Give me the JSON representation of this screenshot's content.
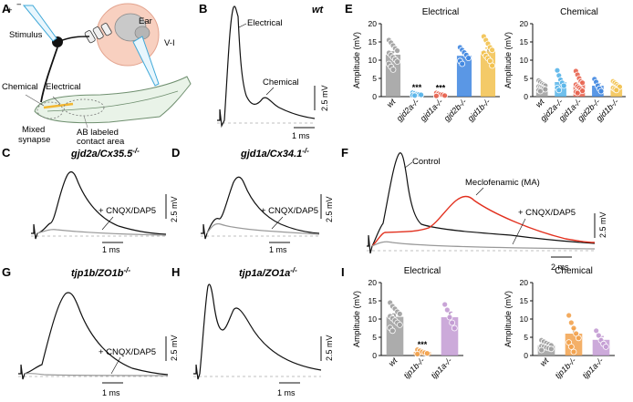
{
  "panel_labels": {
    "A": "A",
    "B": "B",
    "C": "C",
    "D": "D",
    "E": "E",
    "F": "F",
    "G": "G",
    "H": "H",
    "I": "I"
  },
  "panel_a": {
    "ear": "Ear",
    "stimulus": "Stimulus",
    "plus": "+",
    "minus": "−",
    "vi": "V-I",
    "chemical": "Chemical",
    "electrical": "Electrical",
    "mixed": "Mixed",
    "synapse": "synapse",
    "ab_labeled": "AB labeled",
    "contact_area": "contact area"
  },
  "traces": {
    "B": {
      "title": "wt",
      "electrical": "Electrical",
      "chemical": "Chemical",
      "scale_v": "2.5 mV",
      "scale_t": "1 ms"
    },
    "C": {
      "title_main": "gjd2a/Cx35.5",
      "title_sup": "-/-",
      "drug": "+ CNQX/DAP5",
      "scale_v": "2.5 mV",
      "scale_t": "1 ms"
    },
    "D": {
      "title_main": "gjd1a/Cx34.1",
      "title_sup": "-/-",
      "drug": "+ CNQX/DAP5",
      "scale_v": "2.5 mV",
      "scale_t": "1 ms"
    },
    "F": {
      "control": "Control",
      "mf": "Meclofenamic (MA)",
      "drug": "+ CNQX/DAP5",
      "scale_v": "2.5 mV",
      "scale_t": "2 ms"
    },
    "G": {
      "title_main": "tjp1b/ZO1b",
      "title_sup": "-/-",
      "drug": "+ CNQX/DAP5",
      "scale_v": "2.5 mV",
      "scale_t": "1 ms"
    },
    "H": {
      "title_main": "tjp1a/ZO1a",
      "title_sup": "-/-",
      "scale_v": "2.5 mV",
      "scale_t": "1 ms"
    }
  },
  "chart_data": [
    {
      "id": "E-electrical",
      "type": "bar",
      "title": "Electrical",
      "ylabel": "Amplitude (mV)",
      "ylim": [
        0,
        20
      ],
      "yticks": [
        0,
        5,
        10,
        15,
        20
      ],
      "categories": [
        "wt",
        "gjd2a-/-",
        "gjd1a-/-",
        "gjd2b-/-",
        "gjd1b-/-"
      ],
      "values": [
        11.5,
        0.6,
        0.5,
        11.2,
        12.4
      ],
      "errors": [
        0.8,
        0.15,
        0.15,
        0.7,
        0.9
      ],
      "colors": [
        "#9e9e9e",
        "#56b4e9",
        "#e8634f",
        "#3d85e0",
        "#f2c14e"
      ],
      "significance": [
        "",
        "***",
        "***",
        "",
        ""
      ],
      "points": [
        [
          15.5,
          14.8,
          14.0,
          13.2,
          12.6,
          12.0,
          11.4,
          10.8,
          10.2,
          9.6,
          9.0,
          8.2,
          7.4
        ],
        [
          1.1,
          0.9,
          0.7,
          0.6,
          0.5,
          0.4,
          0.3
        ],
        [
          1.0,
          0.8,
          0.6,
          0.5,
          0.3,
          0.2
        ],
        [
          13.5,
          12.8,
          12.1,
          11.4,
          10.6,
          9.8,
          9.0
        ],
        [
          16.5,
          15.5,
          14.5,
          13.5,
          12.8,
          12.0,
          11.2,
          10.5,
          9.8,
          8.5
        ]
      ]
    },
    {
      "id": "E-chemical",
      "type": "bar",
      "title": "Chemical",
      "ylabel": "Amplitude (mV)",
      "ylim": [
        0,
        20
      ],
      "yticks": [
        0,
        5,
        10,
        15,
        20
      ],
      "categories": [
        "wt",
        "gjd2a-/-",
        "gjd1a-/-",
        "gjd2b-/-",
        "gjd1b-/-"
      ],
      "values": [
        2.8,
        4.0,
        3.4,
        3.0,
        2.9
      ],
      "errors": [
        0.3,
        0.8,
        0.5,
        0.6,
        0.4
      ],
      "colors": [
        "#9e9e9e",
        "#56b4e9",
        "#e8634f",
        "#3d85e0",
        "#f2c14e"
      ],
      "significance": [
        "",
        "",
        "",
        "",
        ""
      ],
      "points": [
        [
          4.4,
          4.0,
          3.6,
          3.3,
          3.0,
          2.8,
          2.6,
          2.4,
          2.2,
          2.0,
          1.8,
          1.5
        ],
        [
          7.2,
          5.8,
          4.6,
          3.8,
          3.0,
          2.4,
          1.8
        ],
        [
          7.0,
          6.0,
          5.0,
          4.2,
          3.8,
          3.3,
          2.8,
          2.4,
          2.0,
          1.6,
          1.3,
          1.0
        ],
        [
          4.8,
          4.0,
          3.0,
          2.2,
          1.5
        ],
        [
          4.2,
          3.8,
          3.4,
          3.0,
          2.7,
          2.4,
          2.1,
          1.8
        ]
      ]
    },
    {
      "id": "I-electrical",
      "type": "bar",
      "title": "Electrical",
      "ylabel": "Amplitude (mV)",
      "ylim": [
        0,
        20
      ],
      "yticks": [
        0,
        5,
        10,
        15,
        20
      ],
      "categories": [
        "wt",
        "tjp1b-/-",
        "tjp1a-/-"
      ],
      "values": [
        10.6,
        1.0,
        10.5
      ],
      "errors": [
        0.8,
        0.2,
        1.4
      ],
      "colors": [
        "#9e9e9e",
        "#f2a24e",
        "#c39bd3"
      ],
      "significance": [
        "",
        "***",
        ""
      ],
      "points": [
        [
          14.5,
          13.5,
          12.8,
          12.0,
          11.4,
          10.8,
          10.2,
          9.6,
          9.0,
          8.4,
          7.6,
          6.8
        ],
        [
          1.6,
          1.3,
          1.0,
          0.8,
          0.6,
          0.4
        ],
        [
          14.0,
          12.5,
          10.5,
          9.0,
          7.5
        ]
      ]
    },
    {
      "id": "I-chemical",
      "type": "bar",
      "title": "Chemical",
      "ylabel": "Amplitude (mV)",
      "ylim": [
        0,
        20
      ],
      "yticks": [
        0,
        5,
        10,
        15,
        20
      ],
      "categories": [
        "wt",
        "tjp1b-/-",
        "tjp1a-/-"
      ],
      "values": [
        2.8,
        6.0,
        4.3
      ],
      "errors": [
        0.3,
        1.4,
        0.9
      ],
      "colors": [
        "#9e9e9e",
        "#f2a24e",
        "#c39bd3"
      ],
      "significance": [
        "",
        "",
        ""
      ],
      "points": [
        [
          4.2,
          3.8,
          3.4,
          3.1,
          2.8,
          2.6,
          2.4,
          2.2,
          2.0,
          1.8,
          1.5
        ],
        [
          11.0,
          9.0,
          7.5,
          6.0,
          4.8,
          3.6,
          2.4,
          1.0
        ],
        [
          6.8,
          5.5,
          4.2,
          3.2,
          2.4
        ]
      ]
    }
  ]
}
